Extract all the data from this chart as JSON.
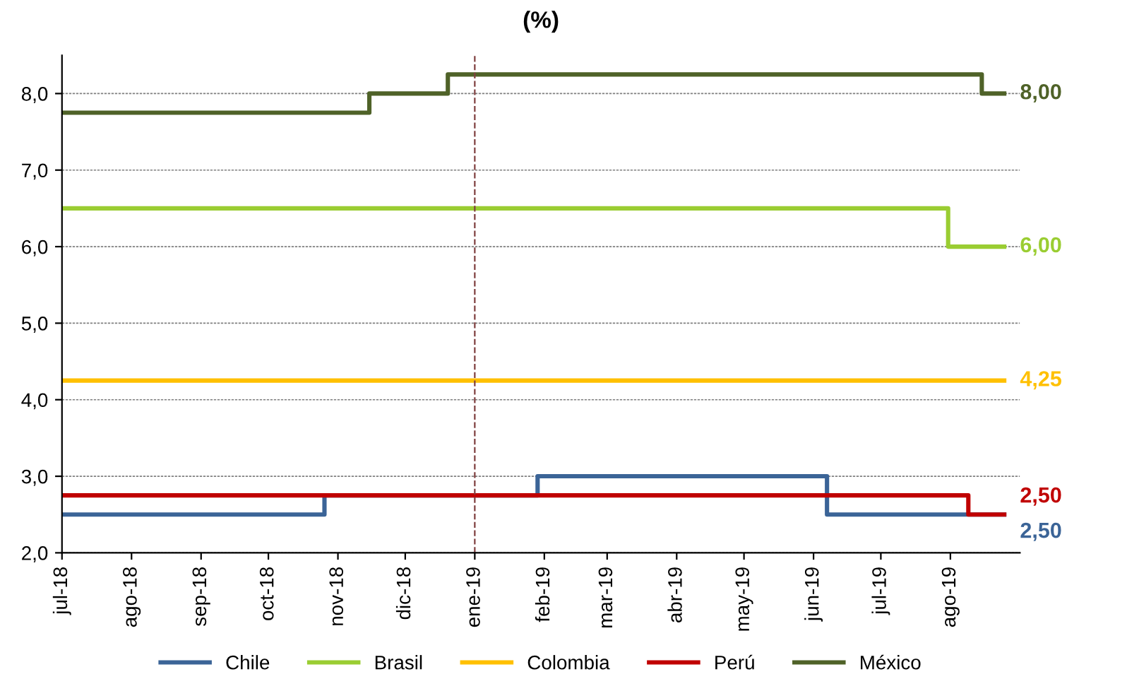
{
  "chart_data": {
    "type": "step",
    "title": "(%)",
    "xlim": [
      "2018-07-01",
      "2019-09-01"
    ],
    "xticks": [
      {
        "value": "2018-07-01",
        "label": "jul-18"
      },
      {
        "value": "2018-08-01",
        "label": "ago-18"
      },
      {
        "value": "2018-09-01",
        "label": "sep-18"
      },
      {
        "value": "2018-10-01",
        "label": "oct-18"
      },
      {
        "value": "2018-11-01",
        "label": "nov-18"
      },
      {
        "value": "2018-12-01",
        "label": "dic-18"
      },
      {
        "value": "2019-01-01",
        "label": "ene-19"
      },
      {
        "value": "2019-02-01",
        "label": "feb-19"
      },
      {
        "value": "2019-03-01",
        "label": "mar-19"
      },
      {
        "value": "2019-04-01",
        "label": "abr-19"
      },
      {
        "value": "2019-05-01",
        "label": "may-19"
      },
      {
        "value": "2019-06-01",
        "label": "jun-19"
      },
      {
        "value": "2019-07-01",
        "label": "jul-19"
      },
      {
        "value": "2019-08-01",
        "label": "ago-19"
      }
    ],
    "ylim": [
      2,
      8.5
    ],
    "yticks": [
      {
        "value": 2,
        "label": "2,0"
      },
      {
        "value": 3,
        "label": "3,0"
      },
      {
        "value": 4,
        "label": "4,0"
      },
      {
        "value": 5,
        "label": "5,0"
      },
      {
        "value": 6,
        "label": "6,0"
      },
      {
        "value": 7,
        "label": "7,0"
      },
      {
        "value": 8,
        "label": "8,0"
      }
    ],
    "grid": "y",
    "legend": "bottom",
    "series": [
      {
        "name": "Chile",
        "color": "#3b6497",
        "x": [
          "2018-07-01",
          "2018-10-26",
          "2019-01-29",
          "2019-06-07",
          "2019-08-25"
        ],
        "values": [
          2.5,
          2.75,
          3.0,
          2.5,
          2.5
        ]
      },
      {
        "name": "Brasil",
        "color": "#9acd32",
        "x": [
          "2018-07-01",
          "2019-07-31",
          "2019-08-25"
        ],
        "values": [
          6.5,
          6.0,
          6.0
        ]
      },
      {
        "name": "Colombia",
        "color": "#ffc000",
        "x": [
          "2018-07-01",
          "2019-08-25"
        ],
        "values": [
          4.25,
          4.25
        ]
      },
      {
        "name": "Perú",
        "color": "#c00000",
        "x": [
          "2018-07-01",
          "2019-08-09",
          "2019-08-25"
        ],
        "values": [
          2.75,
          2.5,
          2.5
        ]
      },
      {
        "name": "México",
        "color": "#4f6228",
        "x": [
          "2018-07-01",
          "2018-11-15",
          "2018-12-20",
          "2019-08-15",
          "2019-08-25"
        ],
        "values": [
          7.75,
          8.0,
          8.25,
          8.0,
          8.0
        ]
      }
    ],
    "ref_lines": [
      {
        "axis": "x",
        "value": "2019-01-01",
        "color": "#7f3f3f",
        "line_style": "dashed"
      }
    ],
    "annotations": [
      {
        "text": "2,50",
        "x": "2019-08-25",
        "y": 2.5
      },
      {
        "text": "6,00",
        "x": "2019-08-25",
        "y": 6.0
      },
      {
        "text": "4,25",
        "x": "2019-08-25",
        "y": 4.25
      },
      {
        "text": "2,50",
        "x": "2019-08-25",
        "y": 2.5
      },
      {
        "text": "8,00",
        "x": "2019-08-25",
        "y": 8.0
      }
    ]
  }
}
